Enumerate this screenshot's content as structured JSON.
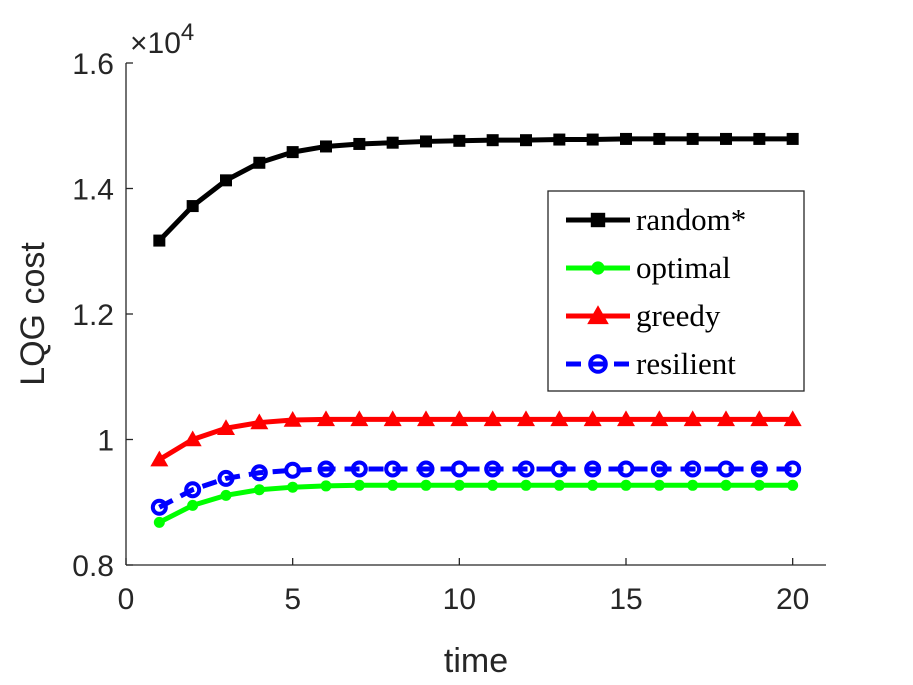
{
  "chart_data": {
    "type": "line",
    "title": "",
    "xlabel": "time",
    "ylabel": "LQG cost",
    "xlim": [
      0,
      21
    ],
    "ylim": [
      0.8,
      1.6
    ],
    "y_scale_exponent": "×10",
    "y_scale_power": "4",
    "xticks": [
      0,
      5,
      10,
      15,
      20
    ],
    "xtick_labels": [
      "0",
      "5",
      "10",
      "15",
      "20"
    ],
    "yticks": [
      0.8,
      1.0,
      1.2,
      1.4,
      1.6
    ],
    "ytick_labels": [
      "0.8",
      "1",
      "1.2",
      "1.4",
      "1.6"
    ],
    "grid": false,
    "legend_position": "upper-right",
    "x": [
      1,
      2,
      3,
      4,
      5,
      6,
      7,
      8,
      9,
      10,
      11,
      12,
      13,
      14,
      15,
      16,
      17,
      18,
      19,
      20
    ],
    "series": [
      {
        "name": "random*",
        "color": "#000000",
        "marker": "square",
        "dashed": false,
        "values": [
          1.317,
          1.372,
          1.413,
          1.441,
          1.458,
          1.467,
          1.471,
          1.473,
          1.475,
          1.476,
          1.477,
          1.477,
          1.478,
          1.478,
          1.479,
          1.479,
          1.479,
          1.479,
          1.479,
          1.479
        ]
      },
      {
        "name": "optimal",
        "color": "#00ff00",
        "marker": "dot",
        "dashed": false,
        "values": [
          0.868,
          0.895,
          0.911,
          0.92,
          0.924,
          0.926,
          0.927,
          0.927,
          0.927,
          0.927,
          0.927,
          0.927,
          0.927,
          0.927,
          0.927,
          0.927,
          0.927,
          0.927,
          0.927,
          0.927
        ]
      },
      {
        "name": "greedy",
        "color": "#ff0000",
        "marker": "triangle",
        "dashed": false,
        "values": [
          0.968,
          1.0,
          1.018,
          1.027,
          1.031,
          1.032,
          1.032,
          1.032,
          1.032,
          1.032,
          1.032,
          1.032,
          1.032,
          1.032,
          1.032,
          1.032,
          1.032,
          1.032,
          1.032,
          1.032
        ]
      },
      {
        "name": "resilient",
        "color": "#0000ff",
        "marker": "circle",
        "dashed": true,
        "values": [
          0.892,
          0.92,
          0.938,
          0.947,
          0.951,
          0.953,
          0.953,
          0.953,
          0.953,
          0.953,
          0.953,
          0.953,
          0.953,
          0.953,
          0.953,
          0.953,
          0.953,
          0.953,
          0.953,
          0.953
        ]
      }
    ]
  }
}
